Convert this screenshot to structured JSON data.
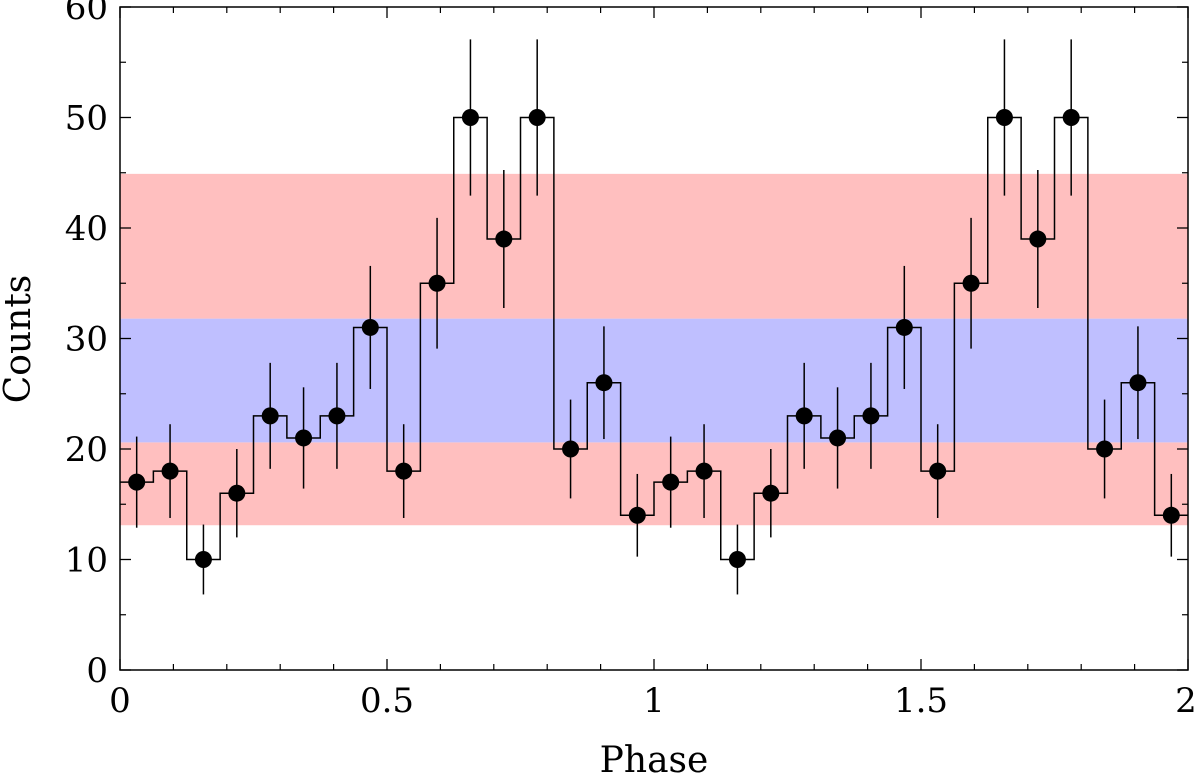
{
  "chart_data": {
    "type": "scatter",
    "title": "",
    "xlabel": "Phase",
    "ylabel": "Counts",
    "xlim": [
      0,
      2
    ],
    "ylim": [
      0,
      60
    ],
    "x_ticks": [
      0,
      0.5,
      1,
      1.5,
      2
    ],
    "x_tick_labels": [
      "0",
      "0.5",
      "1",
      "1.5",
      "2"
    ],
    "y_ticks": [
      0,
      10,
      20,
      30,
      40,
      50,
      60
    ],
    "y_tick_labels": [
      "0",
      "10",
      "20",
      "30",
      "40",
      "50",
      "60"
    ],
    "bin_width": 0.0625,
    "bands": [
      {
        "name": "lower-red-band",
        "y0": 13.1,
        "y1": 20.6,
        "color": "#ffbfbf"
      },
      {
        "name": "blue-band",
        "y0": 20.6,
        "y1": 31.8,
        "color": "#bfbfff"
      },
      {
        "name": "upper-red-band",
        "y0": 31.8,
        "y1": 44.9,
        "color": "#ffbfbf"
      }
    ],
    "series": [
      {
        "name": "counts",
        "x": [
          0.03125,
          0.09375,
          0.15625,
          0.21875,
          0.28125,
          0.34375,
          0.40625,
          0.46875,
          0.53125,
          0.59375,
          0.65625,
          0.71875,
          0.78125,
          0.84375,
          0.90625,
          0.96875,
          1.03125,
          1.09375,
          1.15625,
          1.21875,
          1.28125,
          1.34375,
          1.40625,
          1.46875,
          1.53125,
          1.59375,
          1.65625,
          1.71875,
          1.78125,
          1.84375,
          1.90625,
          1.96875
        ],
        "y": [
          17,
          18,
          10,
          16,
          23,
          21,
          23,
          31,
          18,
          35,
          50,
          39,
          50,
          20,
          26,
          14,
          17,
          18,
          10,
          16,
          23,
          21,
          23,
          31,
          18,
          35,
          50,
          39,
          50,
          20,
          26,
          14
        ]
      }
    ],
    "colors": {
      "marker": "#000000",
      "line": "#000000"
    }
  }
}
